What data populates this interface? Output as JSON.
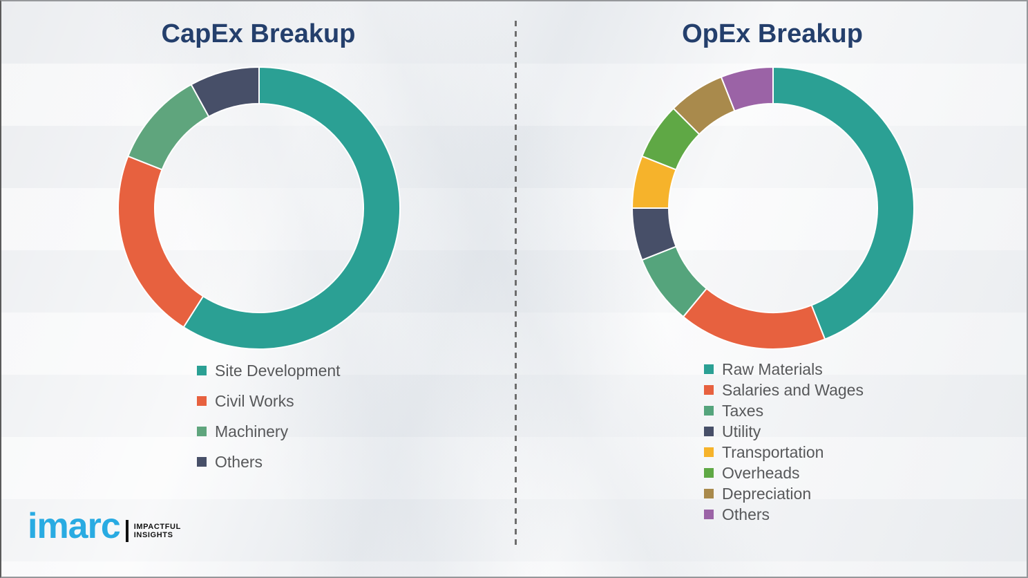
{
  "page": {
    "background_color": "#f1f2f4",
    "divider_style": "vertical-dashed-gray",
    "title_color": "#243f6c",
    "legend_text_color": "#57585a"
  },
  "chart_data": [
    {
      "type": "donut",
      "title": "CapEx Breakup",
      "categories": [
        "Site Development",
        "Civil Works",
        "Machinery",
        "Others"
      ],
      "values": [
        59,
        22,
        11,
        8
      ],
      "values_note": "percent, estimated from arc angles (no numeric labels shown)",
      "colors": [
        "#2ba094",
        "#e7613f",
        "#5fa57d",
        "#474f68"
      ],
      "start_angle_deg": 0,
      "direction": "clockwise",
      "legend_position": "below-left",
      "segment_separator_color": "#ffffff"
    },
    {
      "type": "donut",
      "title": "OpEx Breakup",
      "categories": [
        "Raw Materials",
        "Salaries and Wages",
        "Taxes",
        "Utility",
        "Transportation",
        "Overheads",
        "Depreciation",
        "Others"
      ],
      "values": [
        44,
        17,
        8,
        6,
        6,
        6.5,
        6.5,
        6
      ],
      "values_note": "percent, estimated from arc angles (no numeric labels shown)",
      "colors": [
        "#2ba094",
        "#e7613f",
        "#55a47c",
        "#474f68",
        "#f6b32b",
        "#5fa845",
        "#a98a4c",
        "#9b63a6"
      ],
      "start_angle_deg": 0,
      "direction": "clockwise",
      "legend_position": "below-left",
      "segment_separator_color": "#ffffff"
    }
  ],
  "logo": {
    "brand": "imarc",
    "brand_color": "#29abe2",
    "tagline_line1": "IMPACTFUL",
    "tagline_line2": "INSIGHTS"
  }
}
